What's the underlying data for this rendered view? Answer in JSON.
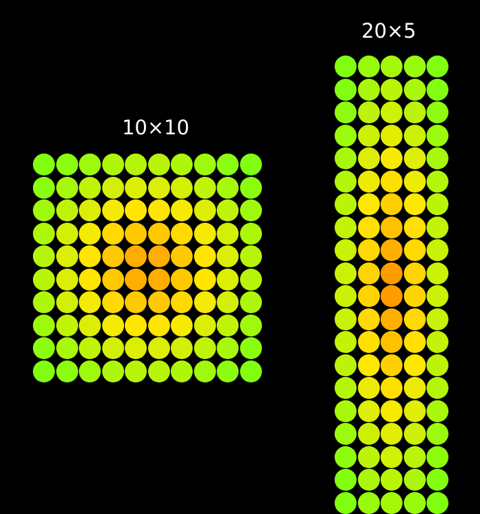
{
  "grids": [
    {
      "label": "10×10",
      "rows": 10,
      "cols": 10
    },
    {
      "label": "20×5",
      "rows": 20,
      "cols": 5
    }
  ],
  "colors": {
    "background": "#000000",
    "label": "#ffffff",
    "edge_color": "#80ff10",
    "center_color": "#ff9000",
    "mid_color": "#ffe800"
  }
}
